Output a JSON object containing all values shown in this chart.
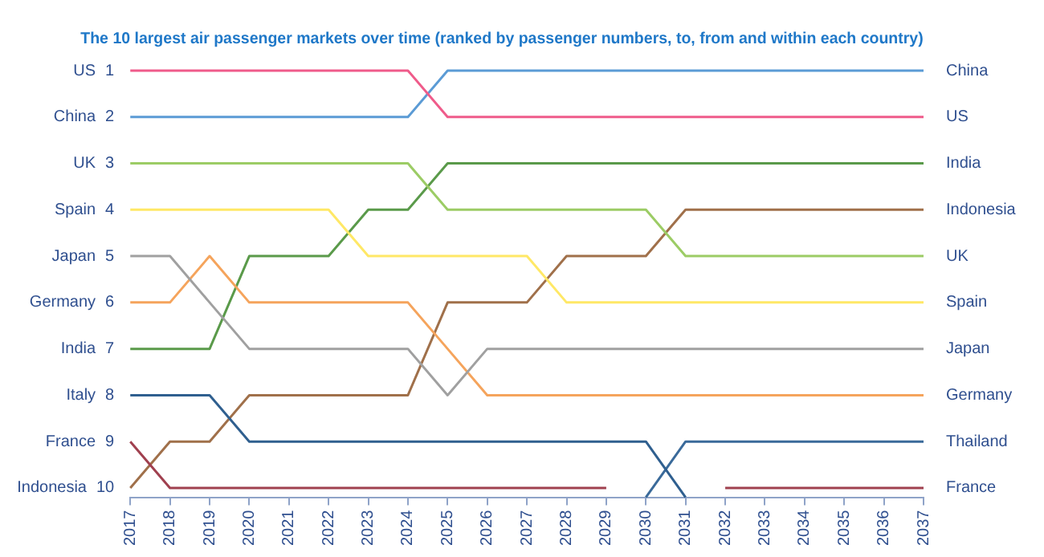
{
  "chart_data": {
    "type": "line",
    "title": "The 10 largest air passenger markets over time (ranked by passenger numbers, to, from and within each country)",
    "categories": [
      "2017",
      "2018",
      "2019",
      "2020",
      "2021",
      "2022",
      "2023",
      "2024",
      "2025",
      "2026",
      "2027",
      "2028",
      "2029",
      "2030",
      "2031",
      "2032",
      "2033",
      "2034",
      "2035",
      "2036",
      "2037"
    ],
    "ylim": [
      10.2,
      1
    ],
    "yticks": [
      1,
      2,
      3,
      4,
      5,
      6,
      7,
      8,
      9,
      10
    ],
    "grid": false,
    "legend": false,
    "marker": "none",
    "line_style": "solid",
    "series": [
      {
        "name": "US",
        "color": "#ef5b8a",
        "values": [
          1,
          1,
          1,
          1,
          1,
          1,
          1,
          1,
          2,
          2,
          2,
          2,
          2,
          2,
          2,
          2,
          2,
          2,
          2,
          2,
          2
        ]
      },
      {
        "name": "China",
        "color": "#5b9bd5",
        "values": [
          2,
          2,
          2,
          2,
          2,
          2,
          2,
          2,
          1,
          1,
          1,
          1,
          1,
          1,
          1,
          1,
          1,
          1,
          1,
          1,
          1
        ]
      },
      {
        "name": "UK",
        "color": "#9ccc65",
        "values": [
          3,
          3,
          3,
          3,
          3,
          3,
          3,
          3,
          4,
          4,
          4,
          4,
          4,
          4,
          5,
          5,
          5,
          5,
          5,
          5,
          5
        ]
      },
      {
        "name": "Spain",
        "color": "#ffe866",
        "values": [
          4,
          4,
          4,
          4,
          4,
          4,
          5,
          5,
          5,
          5,
          5,
          6,
          6,
          6,
          6,
          6,
          6,
          6,
          6,
          6,
          6
        ]
      },
      {
        "name": "Japan",
        "color": "#a0a0a0",
        "values": [
          5,
          5,
          6,
          7,
          7,
          7,
          7,
          7,
          8,
          7,
          7,
          7,
          7,
          7,
          7,
          7,
          7,
          7,
          7,
          7,
          7
        ]
      },
      {
        "name": "Germany",
        "color": "#f5a45c",
        "values": [
          6,
          6,
          5,
          6,
          6,
          6,
          6,
          6,
          7,
          8,
          8,
          8,
          8,
          8,
          8,
          8,
          8,
          8,
          8,
          8,
          8
        ]
      },
      {
        "name": "India",
        "color": "#5a9a4a",
        "values": [
          7,
          7,
          7,
          5,
          5,
          5,
          4,
          4,
          3,
          3,
          3,
          3,
          3,
          3,
          3,
          3,
          3,
          3,
          3,
          3,
          3
        ]
      },
      {
        "name": "Italy",
        "color": "#2f5f8f",
        "values": [
          8,
          8,
          8,
          9,
          9,
          9,
          9,
          9,
          9,
          9,
          9,
          9,
          9,
          9,
          10.2,
          null,
          null,
          null,
          null,
          null,
          null
        ]
      },
      {
        "name": "France",
        "color": "#a0404f",
        "values": [
          9,
          10,
          10,
          10,
          10,
          10,
          10,
          10,
          10,
          10,
          10,
          10,
          10,
          null,
          null,
          10,
          10,
          10,
          10,
          10,
          10
        ]
      },
      {
        "name": "Indonesia",
        "color": "#a0704a",
        "values": [
          10,
          9,
          9,
          8,
          8,
          8,
          8,
          8,
          6,
          6,
          6,
          5,
          5,
          5,
          4,
          4,
          4,
          4,
          4,
          4,
          4
        ]
      },
      {
        "name": "Thailand",
        "color": "#3a6a9a",
        "values": [
          null,
          null,
          null,
          null,
          null,
          null,
          null,
          null,
          null,
          null,
          null,
          null,
          null,
          10.2,
          9,
          9,
          9,
          9,
          9,
          9,
          9
        ]
      }
    ]
  }
}
